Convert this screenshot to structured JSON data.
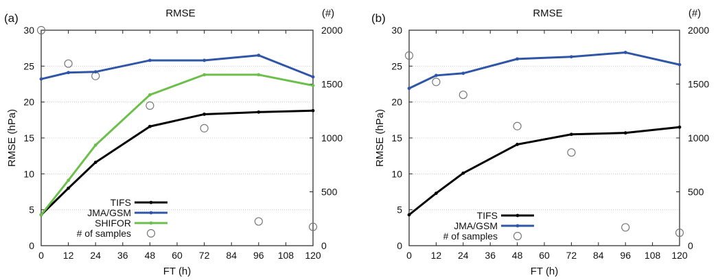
{
  "chart_data": [
    {
      "type": "line",
      "panel_label": "(a)",
      "title": "RMSE",
      "xlabel": "FT (h)",
      "ylabel": "RMSE (hPa)",
      "y2label": "(#)",
      "xlim": [
        0,
        120
      ],
      "ylim": [
        0,
        30
      ],
      "y2lim": [
        0,
        2000
      ],
      "xticks": [
        0,
        12,
        24,
        36,
        48,
        60,
        72,
        84,
        96,
        108,
        120
      ],
      "yticks": [
        0,
        5,
        10,
        15,
        20,
        25,
        30
      ],
      "y2ticks": [
        0,
        500,
        1000,
        1500,
        2000
      ],
      "grid": "horizontal",
      "legend_position": "bottom-left",
      "series": [
        {
          "name": "TIFS",
          "color": "#000000",
          "x": [
            0,
            12,
            24,
            48,
            72,
            96,
            120
          ],
          "y": [
            4.3,
            8.0,
            11.6,
            16.6,
            18.3,
            18.6,
            18.8
          ]
        },
        {
          "name": "JMA/GSM",
          "color": "#2f55a6",
          "x": [
            0,
            12,
            24,
            48,
            72,
            96,
            120
          ],
          "y": [
            23.2,
            24.1,
            24.2,
            25.8,
            25.8,
            26.5,
            23.5
          ]
        },
        {
          "name": "SHIFOR",
          "color": "#6cbf4a",
          "x": [
            0,
            12,
            24,
            48,
            72,
            96,
            120
          ],
          "y": [
            4.3,
            9.1,
            14.0,
            21.0,
            23.8,
            23.8,
            22.3
          ]
        }
      ],
      "samples": {
        "name": "# of samples",
        "x": [
          0,
          12,
          24,
          48,
          72,
          96,
          120
        ],
        "y": [
          2000,
          1690,
          1575,
          1300,
          1090,
          225,
          175
        ]
      }
    },
    {
      "type": "line",
      "panel_label": "(b)",
      "title": "RMSE",
      "xlabel": "FT (h)",
      "ylabel": "RMSE (hPa)",
      "y2label": "(#)",
      "xlim": [
        0,
        120
      ],
      "ylim": [
        0,
        30
      ],
      "y2lim": [
        0,
        2000
      ],
      "xticks": [
        0,
        12,
        24,
        36,
        48,
        60,
        72,
        84,
        96,
        108,
        120
      ],
      "yticks": [
        0,
        5,
        10,
        15,
        20,
        25,
        30
      ],
      "y2ticks": [
        0,
        500,
        1000,
        1500,
        2000
      ],
      "grid": "horizontal",
      "legend_position": "bottom-left",
      "series": [
        {
          "name": "TIFS",
          "color": "#000000",
          "x": [
            0,
            12,
            24,
            48,
            72,
            96,
            120
          ],
          "y": [
            4.3,
            7.3,
            10.1,
            14.1,
            15.5,
            15.7,
            16.5
          ]
        },
        {
          "name": "JMA/GSM",
          "color": "#2f55a6",
          "x": [
            0,
            12,
            24,
            48,
            72,
            96,
            120
          ],
          "y": [
            21.9,
            23.7,
            24.0,
            26.0,
            26.3,
            26.9,
            25.2
          ]
        }
      ],
      "samples": {
        "name": "# of samples",
        "x": [
          0,
          12,
          24,
          48,
          72,
          96,
          120
        ],
        "y": [
          1765,
          1520,
          1400,
          1110,
          865,
          170,
          120
        ]
      }
    }
  ]
}
